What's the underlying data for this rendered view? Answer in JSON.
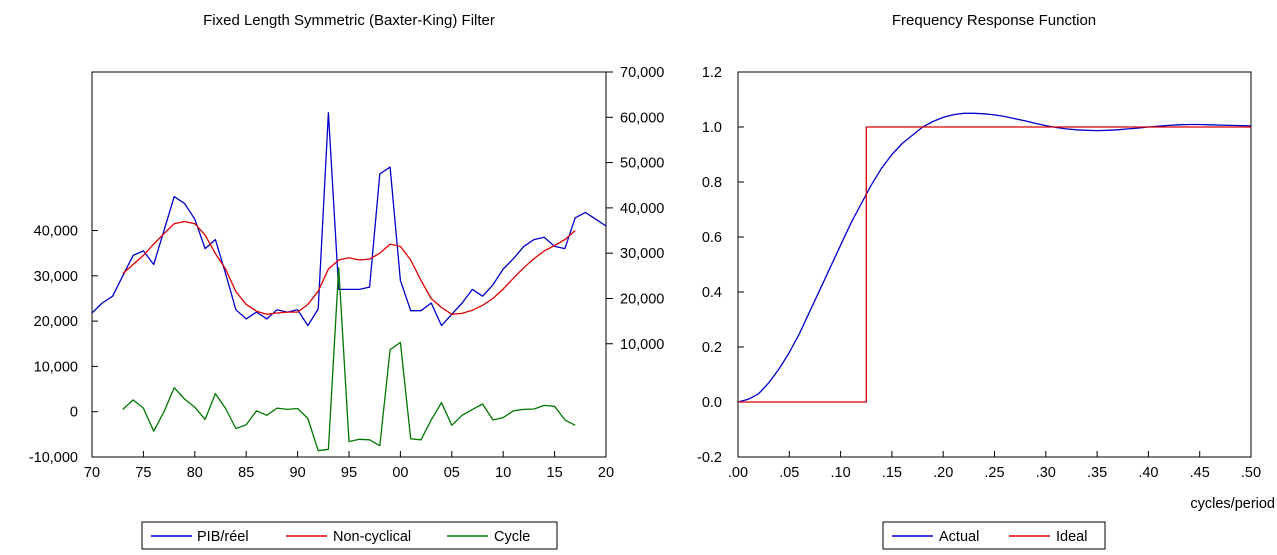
{
  "chart_data": [
    {
      "type": "line",
      "title": "Fixed Length Symmetric (Baxter-King) Filter",
      "x_tick_labels": [
        "70",
        "75",
        "80",
        "85",
        "90",
        "95",
        "00",
        "05",
        "10",
        "15",
        "20"
      ],
      "x_tick_years": [
        1970,
        1975,
        1980,
        1985,
        1990,
        1995,
        2000,
        2005,
        2010,
        2015,
        2020
      ],
      "xlim": [
        1970,
        2020
      ],
      "left_axis": {
        "ylim": [
          -10000,
          75000
        ],
        "tick_values": [
          -10000,
          0,
          10000,
          20000,
          30000,
          40000
        ],
        "tick_labels": [
          "-10,000",
          "0",
          "10,000",
          "20,000",
          "30,000",
          "40,000"
        ]
      },
      "right_axis": {
        "ylim": [
          -15000,
          70000
        ],
        "tick_values": [
          10000,
          20000,
          30000,
          40000,
          50000,
          60000,
          70000
        ],
        "tick_labels": [
          "10,000",
          "20,000",
          "30,000",
          "40,000",
          "50,000",
          "60,000",
          "70,000"
        ]
      },
      "series": [
        {
          "name": "PIB/réel",
          "axis": "right",
          "color": "#0000cc",
          "x": [
            1970,
            1971,
            1972,
            1973,
            1974,
            1975,
            1976,
            1977,
            1978,
            1979,
            1980,
            1981,
            1982,
            1983,
            1984,
            1985,
            1986,
            1987,
            1988,
            1989,
            1990,
            1991,
            1992,
            1993,
            1994,
            1995,
            1996,
            1997,
            1998,
            1999,
            2000,
            2001,
            2002,
            2003,
            2004,
            2005,
            2006,
            2007,
            2008,
            2009,
            2010,
            2011,
            2012,
            2013,
            2014,
            2015,
            2016,
            2017,
            2018,
            2019,
            2020
          ],
          "y": [
            16800,
            19000,
            20500,
            25000,
            29500,
            30500,
            27500,
            35000,
            42500,
            41000,
            37500,
            31000,
            33000,
            25500,
            17500,
            15500,
            17000,
            15500,
            17500,
            17000,
            17500,
            14000,
            17700,
            61000,
            22000,
            22000,
            22000,
            22500,
            47500,
            49000,
            24000,
            17300,
            17300,
            19000,
            14000,
            16500,
            19000,
            22000,
            20500,
            23000,
            26500,
            28800,
            31500,
            33000,
            33500,
            31500,
            31000,
            37800,
            39000,
            37500,
            36000
          ]
        },
        {
          "name": "Non-cyclical",
          "axis": "right",
          "color": "#dd0000",
          "x": [
            1973,
            1974,
            1975,
            1976,
            1977,
            1978,
            1979,
            1980,
            1981,
            1982,
            1983,
            1984,
            1985,
            1986,
            1987,
            1988,
            1989,
            1990,
            1991,
            1992,
            1993,
            1994,
            1995,
            1996,
            1997,
            1998,
            1999,
            2000,
            2001,
            2002,
            2003,
            2004,
            2005,
            2006,
            2007,
            2008,
            2009,
            2010,
            2011,
            2012,
            2013,
            2014,
            2015,
            2016,
            2017
          ],
          "y": [
            25500,
            27500,
            29500,
            32000,
            34300,
            36500,
            37000,
            36500,
            34000,
            29900,
            26500,
            21500,
            18700,
            17200,
            16500,
            16800,
            17000,
            17000,
            18700,
            21600,
            26500,
            28500,
            29000,
            28500,
            28700,
            30000,
            32000,
            31500,
            28500,
            24000,
            20000,
            18000,
            16500,
            16700,
            17400,
            18500,
            20000,
            22100,
            24500,
            26800,
            28800,
            30500,
            31700,
            33000,
            35000
          ]
        },
        {
          "name": "Cycle",
          "axis": "left",
          "color": "#007700",
          "x": [
            1973,
            1974,
            1975,
            1976,
            1977,
            1978,
            1979,
            1980,
            1981,
            1982,
            1983,
            1984,
            1985,
            1986,
            1987,
            1988,
            1989,
            1990,
            1991,
            1992,
            1993,
            1994,
            1995,
            1996,
            1997,
            1998,
            1999,
            2000,
            2001,
            2002,
            2003,
            2004,
            2005,
            2006,
            2007,
            2008,
            2009,
            2010,
            2011,
            2012,
            2013,
            2014,
            2015,
            2016,
            2017
          ],
          "y": [
            500,
            2600,
            800,
            -4300,
            0,
            5300,
            2800,
            1000,
            -1700,
            4000,
            700,
            -3700,
            -2900,
            200,
            -800,
            800,
            500,
            700,
            -1500,
            -8600,
            -8300,
            31800,
            -6600,
            -6100,
            -6200,
            -7500,
            13700,
            15300,
            -6000,
            -6200,
            -1800,
            2000,
            -3000,
            -800,
            500,
            1700,
            -1800,
            -1300,
            200,
            500,
            600,
            1400,
            1200,
            -1800,
            -3000
          ]
        }
      ],
      "legend_position": "bottom"
    },
    {
      "type": "line",
      "title": "Frequency Response Function",
      "xlabel": "cycles/period",
      "xlim": [
        0,
        0.5
      ],
      "ylim": [
        -0.2,
        1.2
      ],
      "x_tick_values": [
        0,
        0.05,
        0.1,
        0.15,
        0.2,
        0.25,
        0.3,
        0.35,
        0.4,
        0.45,
        0.5
      ],
      "x_tick_labels": [
        ".00",
        ".05",
        ".10",
        ".15",
        ".20",
        ".25",
        ".30",
        ".35",
        ".40",
        ".45",
        ".50"
      ],
      "y_tick_values": [
        -0.2,
        0,
        0.2,
        0.4,
        0.6,
        0.8,
        1.0,
        1.2
      ],
      "y_tick_labels": [
        "-0.2",
        "0.0",
        "0.2",
        "0.4",
        "0.6",
        "0.8",
        "1.0",
        "1.2"
      ],
      "series": [
        {
          "name": "Actual",
          "color": "#0000cc",
          "x": [
            0,
            0.01,
            0.02,
            0.03,
            0.04,
            0.05,
            0.06,
            0.07,
            0.08,
            0.09,
            0.1,
            0.11,
            0.12,
            0.13,
            0.14,
            0.15,
            0.16,
            0.17,
            0.18,
            0.19,
            0.2,
            0.21,
            0.22,
            0.23,
            0.24,
            0.25,
            0.26,
            0.27,
            0.28,
            0.29,
            0.3,
            0.31,
            0.32,
            0.33,
            0.34,
            0.35,
            0.36,
            0.37,
            0.38,
            0.39,
            0.4,
            0.41,
            0.42,
            0.43,
            0.44,
            0.45,
            0.46,
            0.47,
            0.48,
            0.49,
            0.5
          ],
          "y": [
            0,
            0.01,
            0.03,
            0.07,
            0.12,
            0.18,
            0.25,
            0.33,
            0.41,
            0.49,
            0.57,
            0.65,
            0.72,
            0.79,
            0.85,
            0.9,
            0.94,
            0.97,
            1.0,
            1.02,
            1.035,
            1.045,
            1.05,
            1.05,
            1.048,
            1.044,
            1.038,
            1.03,
            1.022,
            1.013,
            1.005,
            0.998,
            0.993,
            0.99,
            0.988,
            0.987,
            0.988,
            0.99,
            0.993,
            0.996,
            1.0,
            1.003,
            1.006,
            1.008,
            1.009,
            1.009,
            1.008,
            1.007,
            1.006,
            1.005,
            1.004
          ]
        },
        {
          "name": "Ideal",
          "color": "#dd0000",
          "x": [
            0,
            0.125,
            0.125,
            0.5
          ],
          "y": [
            0,
            0,
            1,
            1
          ]
        }
      ],
      "legend_position": "bottom"
    }
  ]
}
